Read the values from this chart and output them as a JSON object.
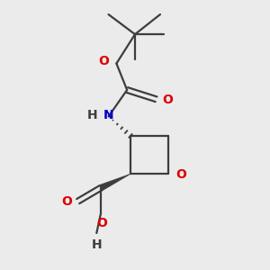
{
  "background_color": "#ebebeb",
  "bond_color": "#3d3d3d",
  "oxygen_color": "#dd0000",
  "nitrogen_color": "#0000cc",
  "line_width": 1.6,
  "fig_size": [
    3.0,
    3.0
  ],
  "dpi": 100,
  "xlim": [
    0,
    10
  ],
  "ylim": [
    0,
    10
  ]
}
